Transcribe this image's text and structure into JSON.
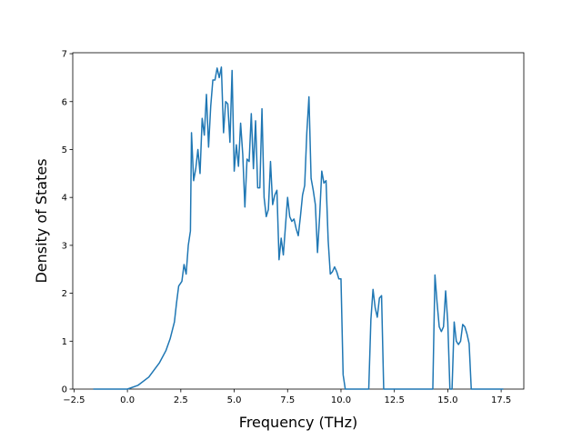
{
  "chart_data": {
    "type": "line",
    "xlabel": "Frequency (THz)",
    "ylabel": "Density of States",
    "color": "#1f77b4",
    "x": [
      -1.6,
      0,
      0.5,
      1.0,
      1.5,
      1.8,
      2.0,
      2.2,
      2.3,
      2.4,
      2.55,
      2.65,
      2.75,
      2.85,
      2.95,
      3.0,
      3.1,
      3.2,
      3.3,
      3.4,
      3.5,
      3.6,
      3.7,
      3.8,
      3.9,
      4.0,
      4.1,
      4.2,
      4.3,
      4.4,
      4.5,
      4.6,
      4.7,
      4.8,
      4.9,
      5.0,
      5.1,
      5.2,
      5.3,
      5.4,
      5.5,
      5.6,
      5.7,
      5.8,
      5.9,
      6.0,
      6.1,
      6.2,
      6.3,
      6.4,
      6.5,
      6.6,
      6.7,
      6.8,
      6.9,
      7.0,
      7.1,
      7.2,
      7.3,
      7.4,
      7.5,
      7.6,
      7.7,
      7.8,
      7.9,
      8.0,
      8.1,
      8.2,
      8.3,
      8.4,
      8.5,
      8.6,
      8.7,
      8.8,
      8.9,
      9.0,
      9.1,
      9.2,
      9.3,
      9.4,
      9.5,
      9.6,
      9.7,
      9.8,
      9.9,
      10.0,
      10.1,
      10.2,
      11.3,
      11.4,
      11.5,
      11.6,
      11.7,
      11.8,
      11.9,
      12.0,
      14.3,
      14.4,
      14.5,
      14.6,
      14.7,
      14.8,
      14.9,
      15.0,
      15.1,
      15.2,
      15.3,
      15.4,
      15.5,
      15.6,
      15.7,
      15.8,
      15.9,
      16.0,
      16.1,
      17.6
    ],
    "values": [
      0,
      0,
      0.08,
      0.25,
      0.55,
      0.8,
      1.05,
      1.4,
      1.8,
      2.15,
      2.25,
      2.6,
      2.4,
      3.0,
      3.3,
      5.35,
      4.35,
      4.6,
      5.0,
      4.5,
      5.65,
      5.3,
      6.15,
      5.05,
      5.9,
      6.45,
      6.45,
      6.7,
      6.5,
      6.72,
      5.35,
      6.0,
      5.95,
      5.15,
      6.65,
      4.55,
      5.1,
      4.65,
      5.55,
      4.9,
      3.8,
      4.8,
      4.75,
      5.75,
      4.6,
      5.6,
      4.2,
      4.2,
      5.85,
      4.0,
      3.6,
      3.75,
      4.75,
      3.85,
      4.05,
      4.15,
      2.7,
      3.15,
      2.8,
      3.4,
      4.0,
      3.6,
      3.5,
      3.55,
      3.35,
      3.2,
      3.6,
      4.05,
      4.25,
      5.35,
      6.1,
      4.4,
      4.15,
      3.85,
      2.85,
      3.6,
      4.55,
      4.3,
      4.35,
      3.1,
      2.4,
      2.45,
      2.55,
      2.45,
      2.3,
      2.3,
      0.3,
      0,
      0,
      1.45,
      2.08,
      1.7,
      1.5,
      1.9,
      1.95,
      0,
      0,
      2.38,
      1.8,
      1.3,
      1.2,
      1.3,
      2.05,
      1.4,
      0,
      0,
      1.4,
      1.0,
      0.93,
      1.0,
      1.35,
      1.3,
      1.15,
      0.95,
      0,
      0
    ],
    "xlim": [
      -2.56,
      18.56
    ],
    "ylim": [
      0,
      7.02
    ],
    "xticks": [
      {
        "value": -2.5,
        "label": "−2.5"
      },
      {
        "value": 0,
        "label": "0.0"
      },
      {
        "value": 2.5,
        "label": "2.5"
      },
      {
        "value": 5,
        "label": "5.0"
      },
      {
        "value": 7.5,
        "label": "7.5"
      },
      {
        "value": 10,
        "label": "10.0"
      },
      {
        "value": 12.5,
        "label": "12.5"
      },
      {
        "value": 15,
        "label": "15.0"
      },
      {
        "value": 17.5,
        "label": "17.5"
      }
    ],
    "yticks": [
      0,
      1,
      2,
      3,
      4,
      5,
      6,
      7
    ]
  }
}
